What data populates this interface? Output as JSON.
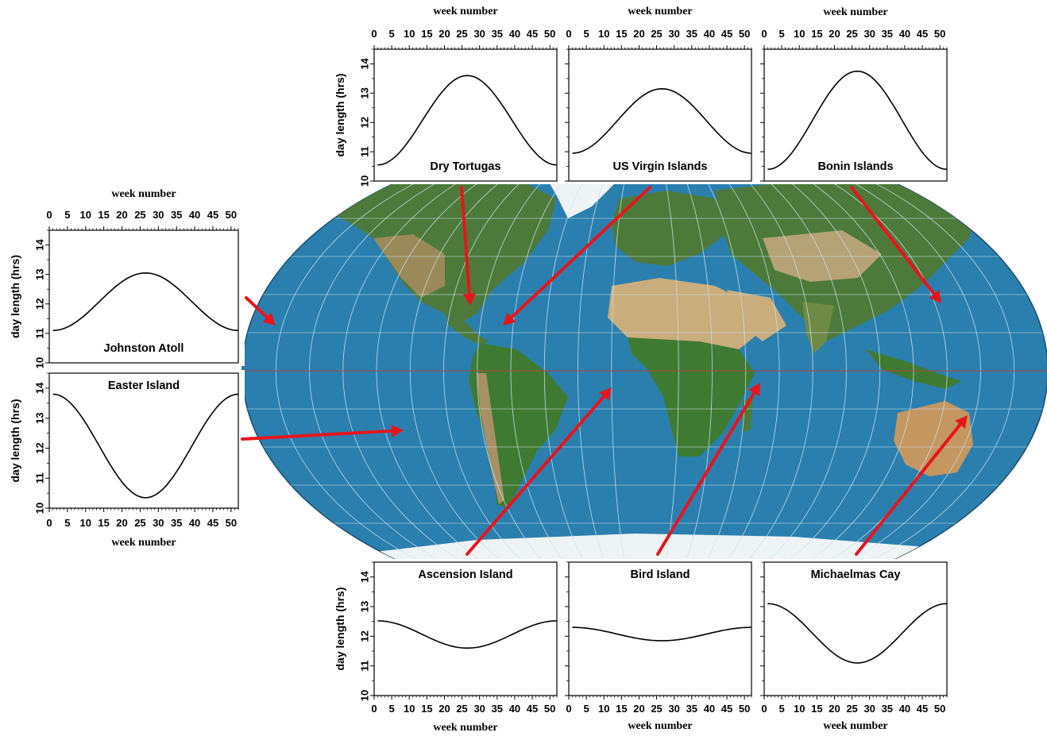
{
  "colors": {
    "ocean": "#2a7fae",
    "land_green": "#4d7a3a",
    "land_desert": "#c9ad7c",
    "ice": "#eef3f6",
    "arrow": "#e8141c",
    "grid": "#cfe3ef",
    "equator": "#b3443f"
  },
  "common": {
    "xlabel": "week number",
    "ylabel": "day length (hrs)",
    "xticks": [
      "0",
      "5",
      "10",
      "15",
      "20",
      "25",
      "30",
      "35",
      "40",
      "45",
      "50"
    ],
    "yticks": [
      "10",
      "11",
      "12",
      "13",
      "14"
    ]
  },
  "chart_data": [
    {
      "type": "line",
      "title": "Dry Tortugas",
      "xlabel": "week number",
      "ylabel": "day length (hrs)",
      "xlim": [
        0,
        52
      ],
      "ylim": [
        10,
        14.5
      ],
      "x_axis": "top",
      "x": [
        1,
        26,
        52
      ],
      "peak": 13.6,
      "trough": 10.55,
      "series_shape": "cosine-max-mid-year"
    },
    {
      "type": "line",
      "title": "US Virgin Islands",
      "xlabel": "week number",
      "ylabel": "",
      "xlim": [
        0,
        52
      ],
      "ylim": [
        10,
        14.5
      ],
      "x_axis": "top",
      "x": [
        1,
        26,
        52
      ],
      "peak": 13.15,
      "trough": 10.95,
      "series_shape": "cosine-max-mid-year"
    },
    {
      "type": "line",
      "title": "Bonin Islands",
      "xlabel": "week number",
      "ylabel": "",
      "xlim": [
        0,
        52
      ],
      "ylim": [
        10,
        14.5
      ],
      "x_axis": "top",
      "x": [
        1,
        26,
        52
      ],
      "peak": 13.75,
      "trough": 10.4,
      "series_shape": "cosine-max-mid-year"
    },
    {
      "type": "line",
      "title": "Johnston Atoll",
      "xlabel": "week number",
      "ylabel": "day length (hrs)",
      "xlim": [
        0,
        52
      ],
      "ylim": [
        10,
        14.5
      ],
      "x_axis": "top",
      "x": [
        1,
        26,
        52
      ],
      "peak": 13.05,
      "trough": 11.1,
      "series_shape": "cosine-max-mid-year"
    },
    {
      "type": "line",
      "title": "Easter Island",
      "xlabel": "week number",
      "ylabel": "day length (hrs)",
      "xlim": [
        0,
        52
      ],
      "ylim": [
        10,
        14.5
      ],
      "x_axis": "bottom",
      "x": [
        1,
        26,
        52
      ],
      "peak": 13.8,
      "trough": 10.35,
      "series_shape": "cosine-min-mid-year"
    },
    {
      "type": "line",
      "title": "Ascension Island",
      "xlabel": "week number",
      "ylabel": "day length (hrs)",
      "xlim": [
        0,
        52
      ],
      "ylim": [
        10,
        14.5
      ],
      "x_axis": "bottom",
      "x": [
        1,
        26,
        52
      ],
      "peak": 12.52,
      "trough": 11.6,
      "series_shape": "cosine-min-mid-year"
    },
    {
      "type": "line",
      "title": "Bird Island",
      "xlabel": "week number",
      "ylabel": "",
      "xlim": [
        0,
        52
      ],
      "ylim": [
        10,
        14.5
      ],
      "x_axis": "bottom",
      "x": [
        1,
        26,
        52
      ],
      "peak": 12.3,
      "trough": 11.85,
      "series_shape": "cosine-min-mid-year"
    },
    {
      "type": "line",
      "title": "Michaelmas Cay",
      "xlabel": "week number",
      "ylabel": "",
      "xlim": [
        0,
        52
      ],
      "ylim": [
        10,
        14.5
      ],
      "x_axis": "bottom",
      "x": [
        1,
        26,
        52
      ],
      "peak": 13.1,
      "trough": 11.1,
      "series_shape": "cosine-min-mid-year"
    }
  ]
}
